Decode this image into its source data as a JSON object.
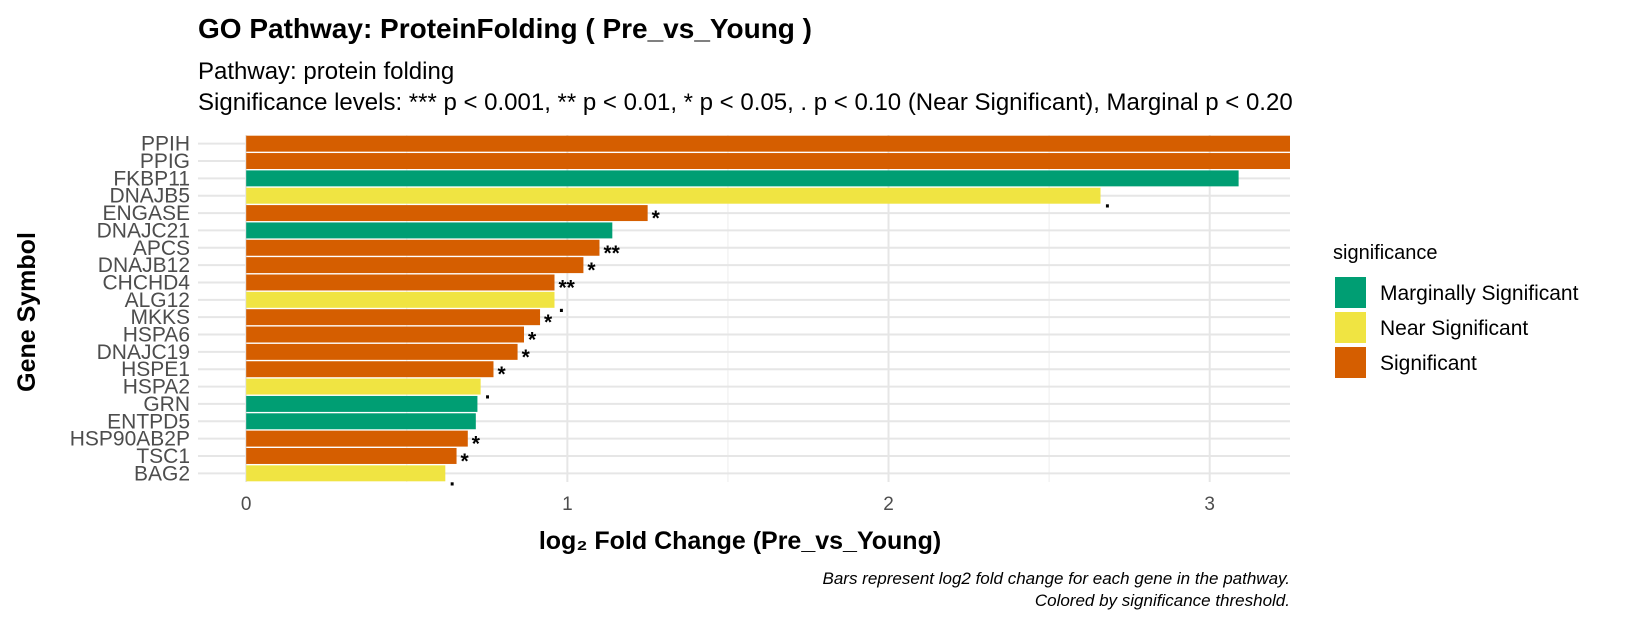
{
  "chart_data": {
    "type": "bar",
    "orientation": "horizontal",
    "title": "GO Pathway: ProteinFolding ( Pre_vs_Young )",
    "subtitle_lines": [
      "Pathway: protein folding",
      "Significance levels: *** p < 0.001, ** p < 0.01, * p < 0.05, . p < 0.10 (Near Significant), Marginal p < 0.20"
    ],
    "xlabel": "log₂ Fold Change (Pre_vs_Young)",
    "ylabel": "Gene Symbol",
    "xlim": [
      -0.15,
      3.25
    ],
    "xticks": [
      0,
      1,
      2,
      3
    ],
    "grid": true,
    "legend": {
      "title": "significance",
      "placement": "right",
      "entries": [
        {
          "label": "Marginally Significant",
          "color": "#009E73"
        },
        {
          "label": "Near Significant",
          "color": "#F0E442"
        },
        {
          "label": "Significant",
          "color": "#D55E00"
        }
      ]
    },
    "caption_lines": [
      "Bars represent log2 fold change for each gene in the pathway.",
      "Colored by significance threshold."
    ],
    "genes": [
      {
        "gene": "PPIH",
        "value": 3.28,
        "significance": "Significant",
        "label": ""
      },
      {
        "gene": "PPIG",
        "value": 3.28,
        "significance": "Significant",
        "label": ""
      },
      {
        "gene": "FKBP11",
        "value": 3.09,
        "significance": "Marginally Significant",
        "label": ""
      },
      {
        "gene": "DNAJB5",
        "value": 2.66,
        "significance": "Near Significant",
        "label": "."
      },
      {
        "gene": "ENGASE",
        "value": 1.25,
        "significance": "Significant",
        "label": "*"
      },
      {
        "gene": "DNAJC21",
        "value": 1.14,
        "significance": "Marginally Significant",
        "label": ""
      },
      {
        "gene": "APCS",
        "value": 1.1,
        "significance": "Significant",
        "label": "**"
      },
      {
        "gene": "DNAJB12",
        "value": 1.05,
        "significance": "Significant",
        "label": "*"
      },
      {
        "gene": "CHCHD4",
        "value": 0.96,
        "significance": "Significant",
        "label": "**"
      },
      {
        "gene": "ALG12",
        "value": 0.96,
        "significance": "Near Significant",
        "label": "."
      },
      {
        "gene": "MKKS",
        "value": 0.915,
        "significance": "Significant",
        "label": "*"
      },
      {
        "gene": "HSPA6",
        "value": 0.865,
        "significance": "Significant",
        "label": "*"
      },
      {
        "gene": "DNAJC19",
        "value": 0.845,
        "significance": "Significant",
        "label": "*"
      },
      {
        "gene": "HSPE1",
        "value": 0.77,
        "significance": "Significant",
        "label": "*"
      },
      {
        "gene": "HSPA2",
        "value": 0.73,
        "significance": "Near Significant",
        "label": "."
      },
      {
        "gene": "GRN",
        "value": 0.72,
        "significance": "Marginally Significant",
        "label": ""
      },
      {
        "gene": "ENTPD5",
        "value": 0.715,
        "significance": "Marginally Significant",
        "label": ""
      },
      {
        "gene": "HSP90AB2P",
        "value": 0.69,
        "significance": "Significant",
        "label": "*"
      },
      {
        "gene": "TSC1",
        "value": 0.655,
        "significance": "Significant",
        "label": "*"
      },
      {
        "gene": "BAG2",
        "value": 0.62,
        "significance": "Near Significant",
        "label": "."
      }
    ]
  }
}
